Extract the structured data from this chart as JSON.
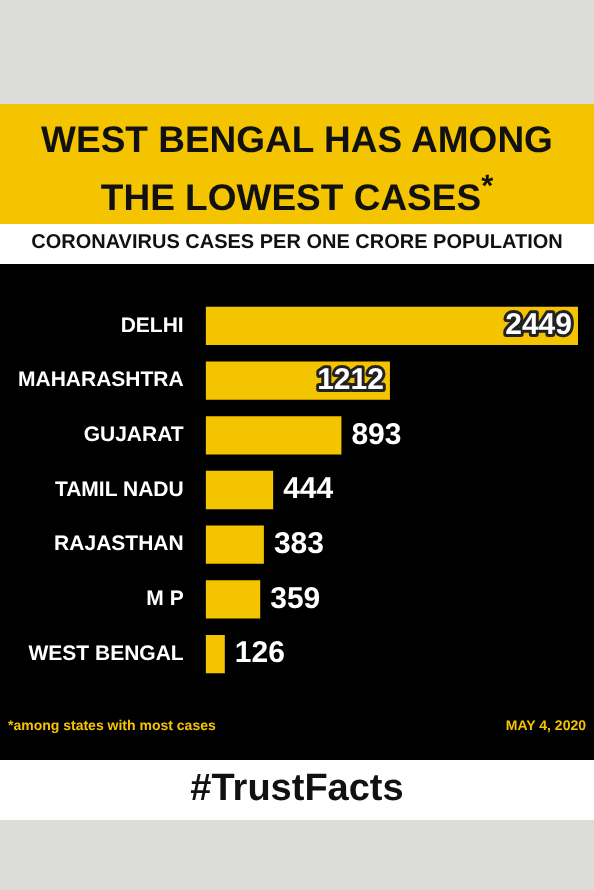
{
  "chart_data": {
    "type": "bar",
    "orientation": "horizontal",
    "title": "WEST BENGAL HAS AMONG THE LOWEST CASES$^{*}$",
    "subtitle": "CORONAVIRUS CASES PER ONE CRORE POPULATION",
    "categories": [
      "DELHI",
      "MAHARASHTRA",
      "GUJARAT",
      "TAMIL NADU",
      "RAJASTHAN",
      "M P",
      "WEST BENGAL"
    ],
    "values": [
      2449,
      1212,
      893,
      444,
      383,
      359,
      126
    ],
    "color": "#f5c400",
    "data_labels": true,
    "legend": false,
    "annotations": [
      "*among states with most cases",
      "MAY 4, 2020",
      "#TrustFacts"
    ]
  }
}
